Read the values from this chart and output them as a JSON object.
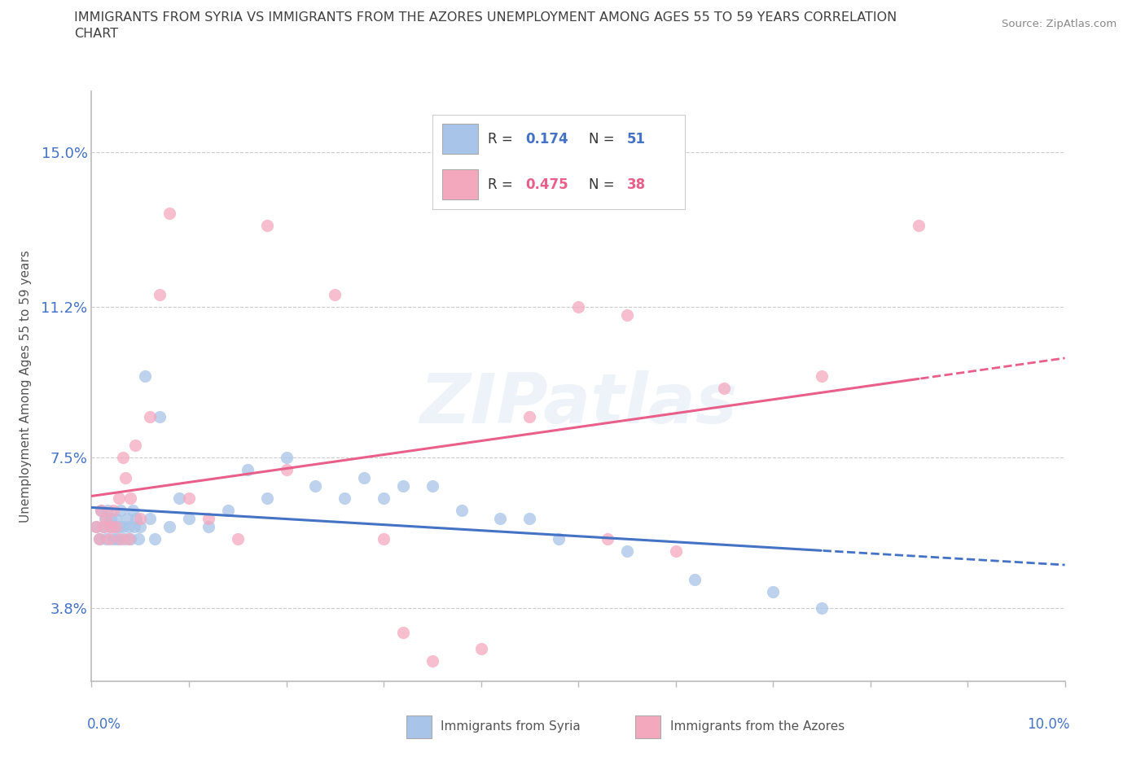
{
  "title_line1": "IMMIGRANTS FROM SYRIA VS IMMIGRANTS FROM THE AZORES UNEMPLOYMENT AMONG AGES 55 TO 59 YEARS CORRELATION",
  "title_line2": "CHART",
  "source_text": "Source: ZipAtlas.com",
  "ylabel": "Unemployment Among Ages 55 to 59 years",
  "ytick_values": [
    3.8,
    7.5,
    11.2,
    15.0
  ],
  "xlim": [
    0.0,
    10.0
  ],
  "ylim": [
    2.0,
    16.5
  ],
  "color_syria": "#a8c4e8",
  "color_azores": "#f4a8be",
  "color_syria_line": "#4472c4",
  "color_azores_line": "#e8608a",
  "color_axis_label": "#4472c4",
  "color_title": "#404040",
  "watermark_text": "ZIPatlas",
  "syria_x": [
    0.05,
    0.08,
    0.1,
    0.12,
    0.14,
    0.15,
    0.16,
    0.18,
    0.2,
    0.22,
    0.24,
    0.25,
    0.26,
    0.28,
    0.3,
    0.32,
    0.34,
    0.36,
    0.38,
    0.4,
    0.42,
    0.44,
    0.46,
    0.48,
    0.5,
    0.55,
    0.6,
    0.65,
    0.7,
    0.8,
    0.9,
    1.0,
    1.2,
    1.4,
    1.6,
    1.8,
    2.0,
    2.3,
    2.6,
    3.0,
    3.5,
    3.8,
    4.2,
    4.8,
    5.5,
    6.2,
    7.0,
    7.5,
    2.8,
    3.2,
    4.5
  ],
  "syria_y": [
    5.8,
    5.5,
    6.2,
    5.8,
    6.0,
    5.5,
    6.2,
    5.8,
    6.0,
    5.5,
    5.8,
    6.0,
    5.5,
    5.8,
    6.2,
    5.8,
    5.5,
    6.0,
    5.8,
    5.5,
    6.2,
    5.8,
    6.0,
    5.5,
    5.8,
    9.5,
    6.0,
    5.5,
    8.5,
    5.8,
    6.5,
    6.0,
    5.8,
    6.2,
    7.2,
    6.5,
    7.5,
    6.8,
    6.5,
    6.5,
    6.8,
    6.2,
    6.0,
    5.5,
    5.2,
    4.5,
    4.2,
    3.8,
    7.0,
    6.8,
    6.0
  ],
  "azores_x": [
    0.05,
    0.08,
    0.1,
    0.12,
    0.15,
    0.18,
    0.2,
    0.22,
    0.25,
    0.28,
    0.3,
    0.32,
    0.35,
    0.38,
    0.4,
    0.45,
    0.5,
    0.6,
    0.8,
    1.0,
    1.2,
    1.5,
    2.0,
    2.5,
    3.0,
    3.5,
    4.5,
    5.0,
    5.5,
    6.0,
    6.5,
    7.5,
    8.5,
    4.0,
    5.3,
    3.2,
    1.8,
    0.7
  ],
  "azores_y": [
    5.8,
    5.5,
    6.2,
    5.8,
    6.0,
    5.5,
    5.8,
    6.2,
    5.8,
    6.5,
    5.5,
    7.5,
    7.0,
    5.5,
    6.5,
    7.8,
    6.0,
    8.5,
    13.5,
    6.5,
    6.0,
    5.5,
    7.2,
    11.5,
    5.5,
    2.5,
    8.5,
    11.2,
    11.0,
    5.2,
    9.2,
    9.5,
    13.2,
    2.8,
    5.5,
    3.2,
    13.2,
    11.5
  ]
}
